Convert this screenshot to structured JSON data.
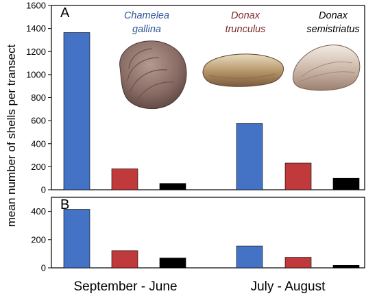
{
  "chart_data": [
    {
      "panel": "A",
      "type": "bar",
      "categories": [
        "September - June",
        "July - August"
      ],
      "series": [
        {
          "name": "Chamelea gallina",
          "color": "#4472c4",
          "values": [
            1365,
            575
          ]
        },
        {
          "name": "Donax trunculus",
          "color": "#c0393b",
          "values": [
            182,
            232
          ]
        },
        {
          "name": "Donax semistriatus",
          "color": "#000000",
          "values": [
            55,
            100
          ]
        }
      ],
      "ylim": [
        0,
        1600
      ],
      "yticks": [
        0,
        200,
        400,
        600,
        800,
        1000,
        1200,
        1400,
        1600
      ]
    },
    {
      "panel": "B",
      "type": "bar",
      "categories": [
        "September - June",
        "July - August"
      ],
      "series": [
        {
          "name": "Chamelea gallina",
          "color": "#4472c4",
          "values": [
            415,
            155
          ]
        },
        {
          "name": "Donax trunculus",
          "color": "#c0393b",
          "values": [
            122,
            75
          ]
        },
        {
          "name": "Donax semistriatus",
          "color": "#000000",
          "values": [
            70,
            18
          ]
        }
      ],
      "ylim": [
        0,
        500
      ],
      "yticks": [
        0,
        200,
        400
      ]
    }
  ],
  "ylabel": "mean number of shells per transect",
  "species_labels": [
    {
      "line1": "Chamelea",
      "line2": "gallina",
      "color": "#2e5597"
    },
    {
      "line1": "Donax",
      "line2": "trunculus",
      "color": "#7b2b2b"
    },
    {
      "line1": "Donax",
      "line2": "semistriatus",
      "color": "#000000"
    }
  ]
}
